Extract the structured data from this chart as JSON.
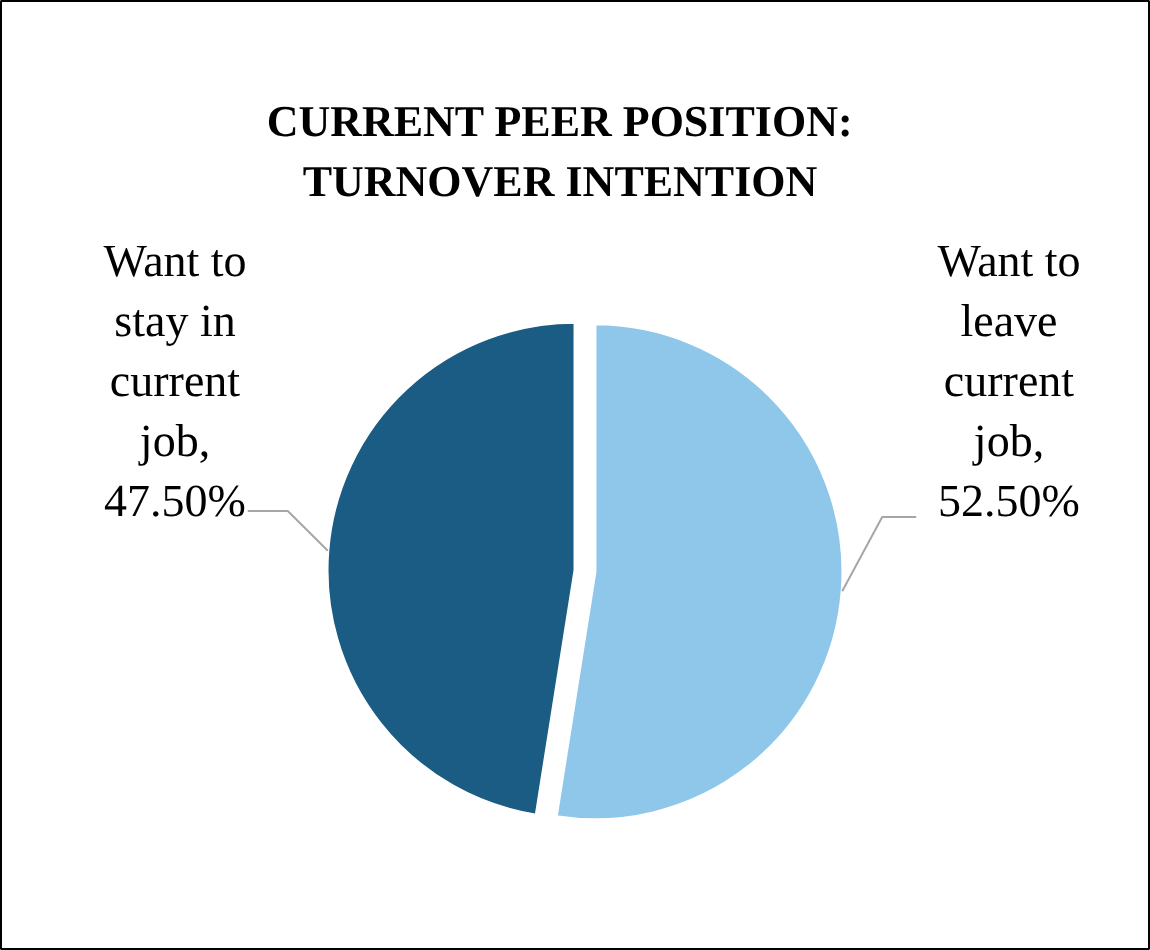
{
  "chart_data": {
    "type": "pie",
    "title": "CURRENT PEER POSITION: TURNOVER INTENTION",
    "categories": [
      "Want to leave current job",
      "Want to stay in current job"
    ],
    "value_labels": [
      ", 52.50%",
      ", 47.50%"
    ],
    "values": [
      52.5,
      47.5
    ],
    "colors": [
      "#8ec7ea",
      "#1b5c84"
    ]
  }
}
